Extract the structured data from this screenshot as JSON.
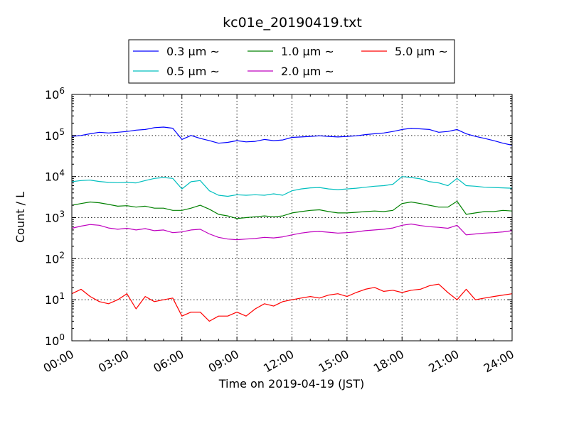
{
  "chart_data": {
    "type": "line",
    "title": "kc01e_20190419.txt",
    "xlabel": "Time on 2019-04-19 (JST)",
    "ylabel": "Count / L",
    "yscale": "log",
    "ylim": [
      1,
      1000000
    ],
    "y_tick_bases": [
      "10",
      "10",
      "10",
      "10",
      "10",
      "10",
      "10"
    ],
    "y_tick_exponents": [
      "0",
      "1",
      "2",
      "3",
      "4",
      "5",
      "6"
    ],
    "xlim": [
      "00:00",
      "24:00"
    ],
    "x_tick_labels": [
      "00:00",
      "03:00",
      "06:00",
      "09:00",
      "12:00",
      "15:00",
      "18:00",
      "21:00",
      "24:00"
    ],
    "grid": true,
    "legend_placement": "top-center",
    "x_hours": [
      0,
      0.5,
      1,
      1.5,
      2,
      2.5,
      3,
      3.5,
      4,
      4.5,
      5,
      5.5,
      6,
      6.5,
      7,
      7.5,
      8,
      8.5,
      9,
      9.5,
      10,
      10.5,
      11,
      11.5,
      12,
      12.5,
      13,
      13.5,
      14,
      14.5,
      15,
      15.5,
      16,
      16.5,
      17,
      17.5,
      18,
      18.5,
      19,
      19.5,
      20,
      20.5,
      21,
      21.5,
      22,
      22.5,
      23,
      23.5,
      24
    ],
    "series": [
      {
        "name": "0.3 μm ~",
        "color": "#0000ff",
        "values": [
          95000,
          100000,
          110000,
          120000,
          115000,
          120000,
          125000,
          135000,
          140000,
          155000,
          160000,
          150000,
          80000,
          100000,
          85000,
          75000,
          65000,
          68000,
          75000,
          70000,
          72000,
          80000,
          75000,
          78000,
          90000,
          92000,
          95000,
          98000,
          95000,
          92000,
          95000,
          98000,
          105000,
          110000,
          115000,
          125000,
          140000,
          150000,
          145000,
          140000,
          120000,
          125000,
          140000,
          110000,
          95000,
          85000,
          75000,
          65000,
          58000
        ]
      },
      {
        "name": "0.5 μm ~",
        "color": "#00bfbf",
        "values": [
          7500,
          8000,
          8200,
          7600,
          7200,
          7100,
          7200,
          7000,
          8000,
          9000,
          9500,
          9000,
          5000,
          7500,
          8000,
          4500,
          3500,
          3300,
          3600,
          3500,
          3600,
          3500,
          3800,
          3500,
          4500,
          5000,
          5300,
          5400,
          5000,
          4800,
          5000,
          5200,
          5500,
          5800,
          6000,
          6500,
          10000,
          9500,
          8800,
          7500,
          7000,
          6000,
          9000,
          6000,
          5800,
          5500,
          5400,
          5300,
          5200
        ]
      },
      {
        "name": "1.0 μm ~",
        "color": "#008000",
        "values": [
          2000,
          2200,
          2400,
          2300,
          2100,
          1900,
          1950,
          1800,
          1900,
          1700,
          1700,
          1500,
          1500,
          1700,
          2000,
          1600,
          1200,
          1100,
          950,
          1000,
          1050,
          1100,
          1050,
          1100,
          1300,
          1400,
          1500,
          1550,
          1400,
          1300,
          1300,
          1350,
          1400,
          1450,
          1400,
          1500,
          2200,
          2400,
          2200,
          2000,
          1800,
          1800,
          2500,
          1200,
          1300,
          1400,
          1400,
          1500,
          1450
        ]
      },
      {
        "name": "2.0 μm ~",
        "color": "#bf00bf",
        "values": [
          550,
          620,
          680,
          650,
          560,
          520,
          550,
          500,
          540,
          480,
          500,
          430,
          450,
          500,
          520,
          400,
          330,
          300,
          290,
          300,
          310,
          330,
          320,
          340,
          380,
          420,
          450,
          460,
          440,
          420,
          430,
          450,
          480,
          500,
          520,
          560,
          650,
          700,
          640,
          600,
          580,
          550,
          650,
          380,
          400,
          420,
          430,
          450,
          480
        ]
      },
      {
        "name": "5.0 μm ~",
        "color": "#ff0000",
        "values": [
          14,
          18,
          12,
          9,
          8,
          10,
          14,
          6,
          12,
          9,
          10,
          11,
          4,
          5,
          5,
          3,
          4,
          4,
          5,
          4,
          6,
          8,
          7,
          9,
          10,
          11,
          12,
          11,
          13,
          14,
          12,
          15,
          18,
          20,
          16,
          17,
          15,
          17,
          18,
          22,
          24,
          15,
          10,
          18,
          10,
          11,
          12,
          13,
          14
        ]
      }
    ]
  }
}
